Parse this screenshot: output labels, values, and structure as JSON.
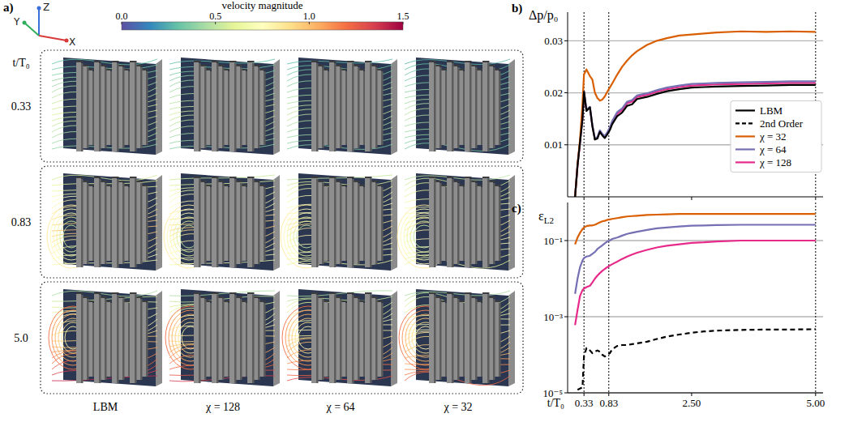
{
  "panel_a": {
    "label": "a)",
    "axes_triad": [
      "Z",
      "Y",
      "X"
    ],
    "colorbar": {
      "title": "velocity magnitude",
      "range": [
        0,
        1.5
      ],
      "ticks": [
        {
          "value": 0,
          "label": "0.0"
        },
        {
          "value": 0.5,
          "label": "0.5"
        },
        {
          "value": 1,
          "label": "1.0"
        },
        {
          "value": 1.5,
          "label": "1.5"
        }
      ]
    },
    "row_title": "t/T₀",
    "rows": [
      0.33,
      0.83,
      {
        "value": 5,
        "label": "5.0"
      }
    ],
    "columns": [
      "LBM",
      "χ = 128",
      "χ = 64",
      "χ = 32"
    ]
  },
  "chart_data": [
    {
      "type": "line",
      "panel_label": "b)",
      "y_label": "Δp/p₀",
      "xlim": [
        0,
        5.15
      ],
      "xticks": [
        0.33,
        0.83,
        {
          "value": 2.5,
          "label": "2.50"
        },
        {
          "value": 5,
          "label": "5.00"
        }
      ],
      "ylim": [
        0,
        0.0355
      ],
      "yticks": [
        0.01,
        0.02,
        0.03
      ],
      "grid": true,
      "legend": "right",
      "tick_labels": "y",
      "x": [
        0.15,
        0.2,
        0.25,
        0.3,
        0.33,
        0.38,
        0.45,
        0.5,
        0.55,
        0.6,
        0.65,
        0.7,
        0.75,
        0.8,
        0.85,
        0.9,
        1.0,
        1.1,
        1.2,
        1.3,
        1.4,
        1.6,
        1.8,
        2.0,
        2.25,
        2.5,
        2.75,
        3.0,
        3.5,
        4.0,
        4.5,
        5.0
      ],
      "series": [
        {
          "name": "LBM",
          "color": "#000000",
          "line_style": "solid",
          "values": [
            0,
            0.006,
            0.0105,
            0.015,
            0.0202,
            0.0165,
            0.0172,
            0.0135,
            0.011,
            0.0112,
            0.0125,
            0.0118,
            0.0113,
            0.012,
            0.0128,
            0.014,
            0.0155,
            0.0162,
            0.0175,
            0.0178,
            0.0188,
            0.0192,
            0.0198,
            0.0203,
            0.0207,
            0.021,
            0.0211,
            0.0212,
            0.0213,
            0.0214,
            0.0215,
            0.0215
          ]
        },
        {
          "name": "χ = 32",
          "color": "#d95f02",
          "line_style": "solid",
          "values": [
            0,
            0.0062,
            0.011,
            0.018,
            0.0235,
            0.0245,
            0.0232,
            0.0225,
            0.02,
            0.019,
            0.0185,
            0.0187,
            0.0193,
            0.0202,
            0.021,
            0.0218,
            0.0235,
            0.025,
            0.0262,
            0.0272,
            0.028,
            0.0292,
            0.03,
            0.0305,
            0.031,
            0.0312,
            0.0314,
            0.0316,
            0.0318,
            0.0317,
            0.0318,
            0.0317
          ]
        },
        {
          "name": "χ = 64",
          "color": "#7570b3",
          "line_style": "solid",
          "values": [
            0,
            0.006,
            0.0105,
            0.0152,
            0.0203,
            0.0168,
            0.0173,
            0.0138,
            0.0112,
            0.0115,
            0.0128,
            0.0121,
            0.0117,
            0.0124,
            0.0133,
            0.0146,
            0.0163,
            0.017,
            0.0183,
            0.0186,
            0.0195,
            0.0199,
            0.0205,
            0.021,
            0.0214,
            0.0217,
            0.0218,
            0.0219,
            0.022,
            0.0221,
            0.0222,
            0.0222
          ]
        },
        {
          "name": "χ = 128",
          "color": "#e7298a",
          "line_style": "solid",
          "values": [
            0,
            0.006,
            0.0105,
            0.0151,
            0.0202,
            0.0166,
            0.0172,
            0.0136,
            0.0111,
            0.0113,
            0.0126,
            0.0119,
            0.0115,
            0.0122,
            0.013,
            0.0143,
            0.016,
            0.0167,
            0.018,
            0.0183,
            0.0192,
            0.0196,
            0.0202,
            0.0207,
            0.0211,
            0.0214,
            0.0215,
            0.0216,
            0.0217,
            0.0218,
            0.0219,
            0.0219
          ]
        }
      ]
    },
    {
      "type": "line",
      "panel_label": "c)",
      "y_label": "εL2",
      "x_label": "t/T₀",
      "log": "y",
      "xlim": [
        0,
        5.15
      ],
      "xticks": [
        0.33,
        0.83,
        {
          "value": 2.5,
          "label": "2.50"
        },
        {
          "value": 5,
          "label": "5.00"
        }
      ],
      "ylim": [
        1e-05,
        1
      ],
      "yticks": [
        {
          "value": 1e-05,
          "label": "10⁻⁵"
        },
        {
          "value": 0.001,
          "label": "10⁻³"
        },
        {
          "value": 0.1,
          "label": "10⁻¹"
        }
      ],
      "grid": true,
      "x": [
        0.15,
        0.2,
        0.25,
        0.3,
        0.33,
        0.38,
        0.45,
        0.5,
        0.55,
        0.6,
        0.65,
        0.7,
        0.75,
        0.8,
        0.85,
        0.9,
        1.0,
        1.1,
        1.2,
        1.3,
        1.4,
        1.6,
        1.8,
        2.0,
        2.25,
        2.5,
        2.75,
        3.0,
        3.5,
        4.0,
        4.5,
        5.0
      ],
      "series": [
        {
          "name": "2nd Order",
          "color": "#000000",
          "line_style": "dashed",
          "values": [
            null,
            1.2e-05,
            1.3e-05,
            1.4e-05,
            9e-05,
            0.00015,
            0.00013,
            0.00011,
            0.00012,
            0.00013,
            0.00012,
            0.0001,
            9e-05,
            0.0001,
            0.00011,
            0.00014,
            0.00017,
            0.00018,
            0.00018,
            0.00019,
            0.0002,
            0.00022,
            0.00026,
            0.0003,
            0.00034,
            0.00038,
            0.00041,
            0.00043,
            0.00045,
            0.00046,
            0.00046,
            0.00047
          ]
        },
        {
          "name": "χ = 32",
          "color": "#d95f02",
          "line_style": "solid",
          "values": [
            0.08,
            0.12,
            0.16,
            0.2,
            0.22,
            0.24,
            0.25,
            0.25,
            0.26,
            0.28,
            0.3,
            0.32,
            0.33,
            0.35,
            0.36,
            0.37,
            0.39,
            0.41,
            0.43,
            0.44,
            0.45,
            0.47,
            0.48,
            0.49,
            0.5,
            0.5,
            0.5,
            0.5,
            0.5,
            0.5,
            0.5,
            0.5
          ]
        },
        {
          "name": "χ = 64",
          "color": "#7570b3",
          "line_style": "solid",
          "values": [
            0.004,
            0.01,
            0.02,
            0.03,
            0.035,
            0.038,
            0.04,
            0.045,
            0.05,
            0.06,
            0.067,
            0.075,
            0.085,
            0.095,
            0.1,
            0.11,
            0.12,
            0.135,
            0.15,
            0.16,
            0.17,
            0.19,
            0.21,
            0.22,
            0.235,
            0.245,
            0.25,
            0.255,
            0.26,
            0.26,
            0.26,
            0.26
          ]
        },
        {
          "name": "χ = 128",
          "color": "#e7298a",
          "line_style": "solid",
          "values": [
            0.0006,
            0.0015,
            0.0035,
            0.005,
            0.0055,
            0.006,
            0.0065,
            0.008,
            0.01,
            0.012,
            0.014,
            0.016,
            0.018,
            0.02,
            0.022,
            0.024,
            0.028,
            0.033,
            0.038,
            0.043,
            0.048,
            0.057,
            0.066,
            0.073,
            0.08,
            0.087,
            0.09,
            0.095,
            0.1,
            0.1,
            0.1,
            0.1
          ]
        }
      ]
    }
  ]
}
